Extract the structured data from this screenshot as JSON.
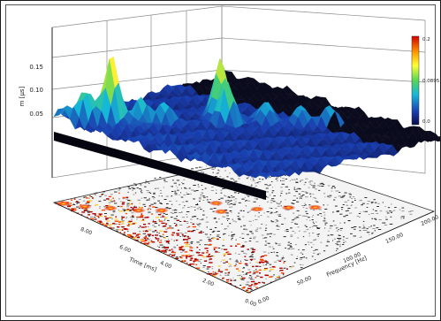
{
  "chart_data": {
    "type": "surface3d",
    "zlabel": "m [µs]",
    "xlabel": "Time [ms]",
    "ylabel": "Frequency [Hz]",
    "z_ticks": [
      "0.15",
      "0.10",
      "0.05"
    ],
    "time_ticks": [
      "8.00",
      "6.00",
      "4.00",
      "2.00",
      "0.00"
    ],
    "freq_ticks": [
      "0.00",
      "50.00",
      "100.00",
      "150.00",
      "200.00"
    ],
    "zlim": [
      0,
      0.2
    ],
    "colorbar": {
      "labels": [
        "0.2",
        "0.0895",
        "0.0"
      ],
      "colors": [
        "#d40000",
        "#ff9900",
        "#ffff33",
        "#55d655",
        "#16b8d8",
        "#1a3fb0",
        "#0a0a4a"
      ]
    },
    "peaks": [
      {
        "time": 6.8,
        "freq": 30,
        "z": 0.17
      },
      {
        "time": 5.2,
        "freq": 105,
        "z": 0.16
      },
      {
        "time": 4.6,
        "freq": 95,
        "z": 0.11
      },
      {
        "time": 7.3,
        "freq": 15,
        "z": 0.09
      },
      {
        "time": 6.2,
        "freq": 45,
        "z": 0.08
      },
      {
        "time": 5.8,
        "freq": 60,
        "z": 0.07
      },
      {
        "time": 4.0,
        "freq": 120,
        "z": 0.08
      },
      {
        "time": 3.4,
        "freq": 140,
        "z": 0.07
      },
      {
        "time": 2.8,
        "freq": 155,
        "z": 0.06
      },
      {
        "time": 7.8,
        "freq": 5,
        "z": 0.05
      }
    ],
    "grid": true
  }
}
